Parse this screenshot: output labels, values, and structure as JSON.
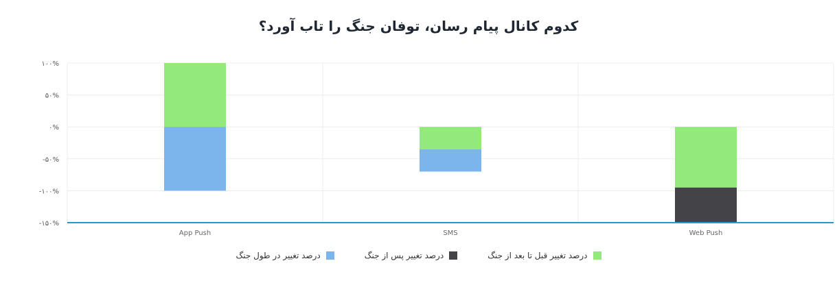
{
  "chart_data": {
    "type": "bar",
    "stacked": true,
    "title": "کدوم کانال پیام رسان، توفان جنگ را تاب آورد؟",
    "categories": [
      "App Push",
      "SMS",
      "Web Push"
    ],
    "series": [
      {
        "name": "درصد تغییر قبل تا بعد از جنگ",
        "color": "#93e97a",
        "values": [
          100,
          -35,
          -95
        ]
      },
      {
        "name": "درصد تغییر پس از جنگ",
        "color": "#434348",
        "values": [
          0,
          0,
          -55
        ]
      },
      {
        "name": "درصد تغییر در طول جنگ",
        "color": "#7cb5ec",
        "values": [
          -100,
          -35,
          0
        ]
      }
    ],
    "ylim": [
      -150,
      100
    ],
    "yticks": [
      100,
      50,
      0,
      -50,
      -100,
      -150
    ],
    "ytick_labels": [
      "۱۰۰%",
      "۵۰%",
      "۰%",
      "-۵۰%",
      "-۱۰۰%",
      "-۱۵۰%"
    ],
    "grid": true,
    "legend_position": "bottom"
  }
}
